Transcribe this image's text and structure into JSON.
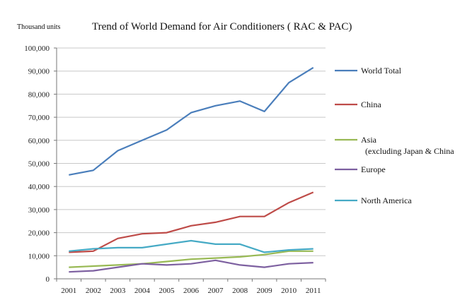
{
  "chart_data": {
    "type": "line",
    "title": "Trend of World Demand for Air Conditioners ( RAC & PAC)",
    "ylabel": "Thousand units",
    "xlabel": "",
    "categories": [
      "2001",
      "2002",
      "2003",
      "2004",
      "2005",
      "2006",
      "2007",
      "2008",
      "2009",
      "2010",
      "2011"
    ],
    "ylim": [
      0,
      100000
    ],
    "yticks": [
      0,
      10000,
      20000,
      30000,
      40000,
      50000,
      60000,
      70000,
      80000,
      90000,
      100000
    ],
    "ytick_labels": [
      "0",
      "10,000",
      "20,000",
      "30,000",
      "40,000",
      "50,000",
      "60,000",
      "70,000",
      "80,000",
      "90,000",
      "100,000"
    ],
    "grid": "horizontal",
    "legend_position": "right",
    "series": [
      {
        "name": "World Total",
        "color": "#4a7ebb",
        "values": [
          45000,
          47000,
          55500,
          60000,
          64500,
          72000,
          75000,
          77000,
          72500,
          85000,
          91500
        ]
      },
      {
        "name": "China",
        "color": "#be4b48",
        "values": [
          11500,
          12000,
          17500,
          19500,
          20000,
          23000,
          24500,
          27000,
          27000,
          33000,
          37500
        ]
      },
      {
        "name": "Asia",
        "name_line2": "(excluding Japan & China",
        "color": "#98b954",
        "values": [
          5000,
          5500,
          6000,
          6500,
          7500,
          8500,
          9000,
          9500,
          10500,
          12000,
          12000
        ]
      },
      {
        "name": "Europe",
        "color": "#7d60a0",
        "values": [
          3000,
          3500,
          5000,
          6500,
          6000,
          6500,
          8000,
          6000,
          5000,
          6500,
          7000
        ]
      },
      {
        "name": "North America",
        "color": "#46aac5",
        "values": [
          12000,
          13000,
          13500,
          13500,
          15000,
          16500,
          15000,
          15000,
          11500,
          12500,
          13000
        ]
      }
    ]
  }
}
